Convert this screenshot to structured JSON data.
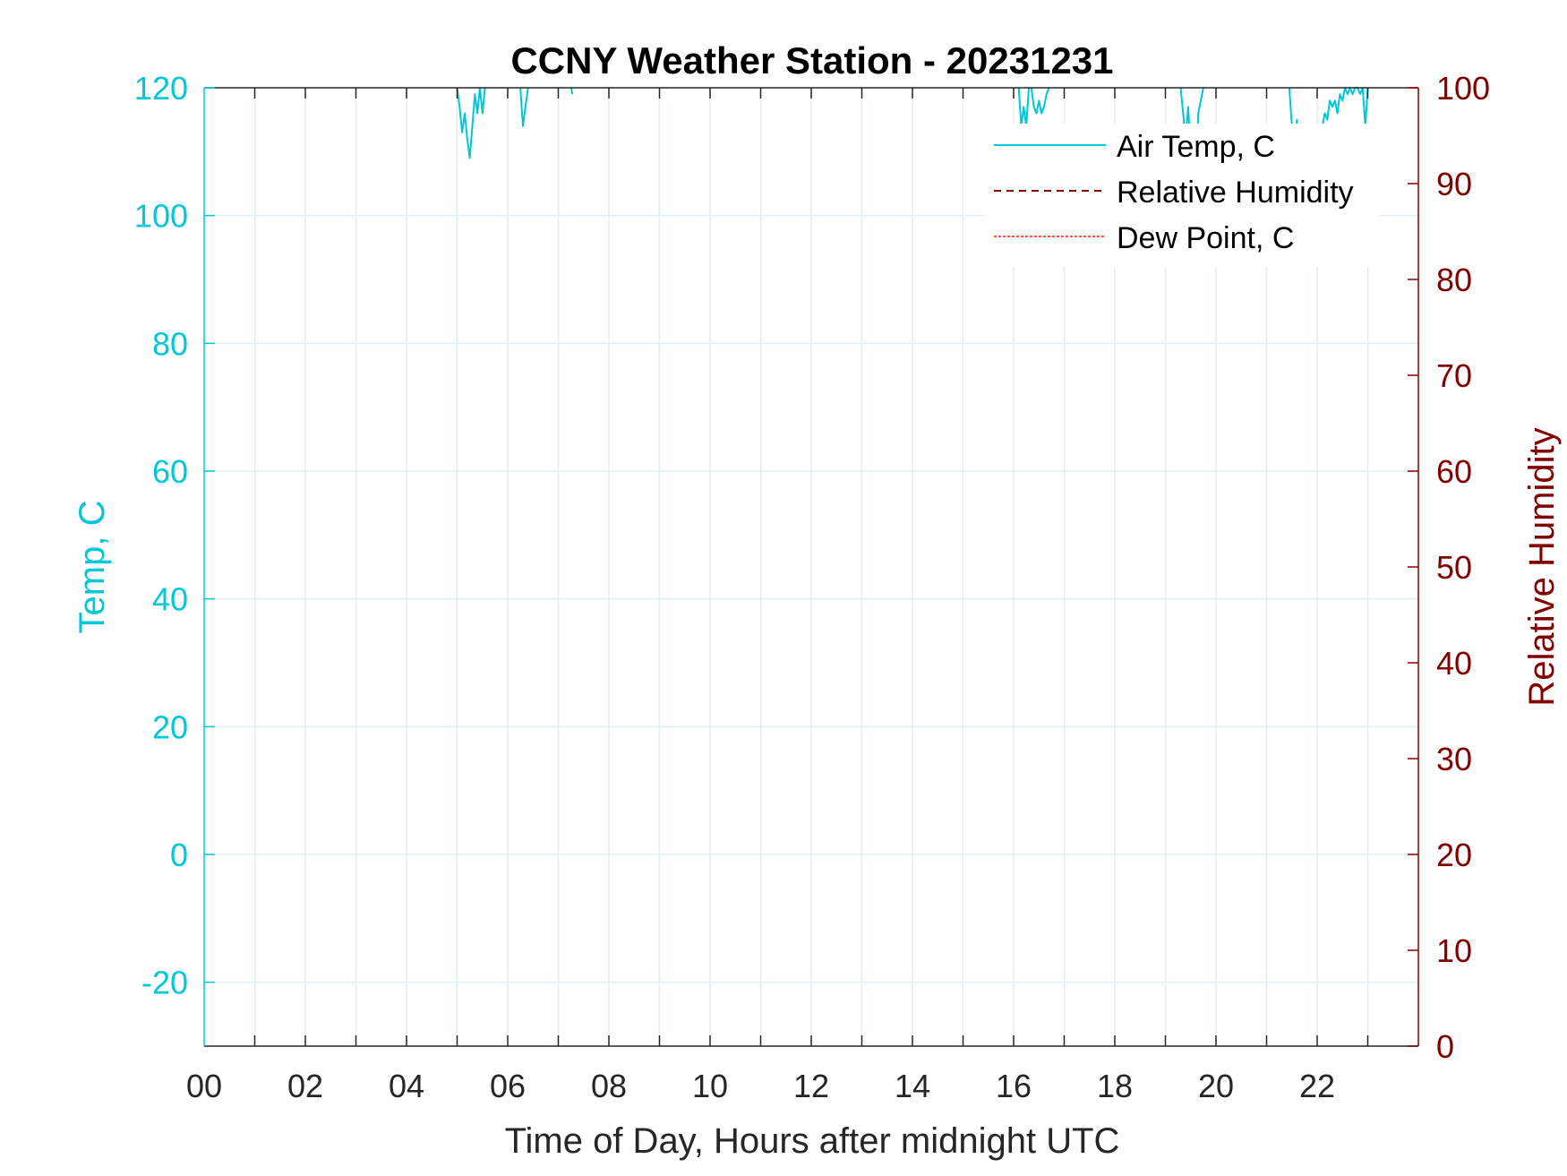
{
  "chart_data": {
    "type": "line",
    "title": "CCNY Weather Station - 20231231",
    "xlabel": "Time of Day, Hours after midnight UTC",
    "ylabel_left": "Temp, C",
    "ylabel_right": "Relative Humidity",
    "xlim": [
      0,
      24
    ],
    "ylim_left": [
      -30,
      120
    ],
    "ylim_right": [
      0,
      100
    ],
    "x_ticks": [
      "00",
      "02",
      "04",
      "06",
      "08",
      "10",
      "12",
      "14",
      "16",
      "18",
      "20",
      "22"
    ],
    "x_tick_values": [
      0,
      2,
      4,
      6,
      8,
      10,
      12,
      14,
      16,
      18,
      20,
      22
    ],
    "y_left_ticks": [
      "120",
      "100",
      "80",
      "60",
      "40",
      "20",
      "0",
      "-20"
    ],
    "y_left_tick_values": [
      120,
      100,
      80,
      60,
      40,
      20,
      0,
      -20
    ],
    "y_right_ticks": [
      "100",
      "90",
      "80",
      "70",
      "60",
      "50",
      "40",
      "30",
      "20",
      "10",
      "0"
    ],
    "y_right_tick_values": [
      100,
      90,
      80,
      70,
      60,
      50,
      40,
      30,
      20,
      10,
      0
    ],
    "grid": true,
    "legend_position": "top-right",
    "colors": {
      "air_temp": "#00c8d8",
      "rh": "#800000",
      "dew_point": "#ff5040",
      "axis": "#262626",
      "grid": "#e2eef2"
    },
    "series": [
      {
        "name": "Air Temp, C",
        "axis": "left",
        "style": "solid",
        "segments": [
          {
            "x": [
              5.0,
              5.05,
              5.1,
              5.15,
              5.2,
              5.25,
              5.3,
              5.35,
              5.4,
              5.45,
              5.5,
              5.55
            ],
            "y": [
              120,
              117,
              113,
              116,
              112,
              109,
              114,
              119,
              116,
              120,
              116,
              120
            ]
          },
          {
            "x": [
              6.25,
              6.3,
              6.35,
              6.4
            ],
            "y": [
              120,
              114,
              117,
              120
            ]
          },
          {
            "x": [
              7.25,
              7.28
            ],
            "y": [
              120,
              119
            ]
          },
          {
            "x": [
              16.1,
              16.15,
              16.2,
              16.25,
              16.3
            ],
            "y": [
              120,
              114,
              117,
              114,
              120
            ]
          },
          {
            "x": [
              16.35,
              16.4,
              16.45,
              16.5,
              16.55,
              16.6,
              16.65,
              16.7
            ],
            "y": [
              120,
              117,
              116,
              118,
              116,
              117,
              119,
              120
            ]
          },
          {
            "x": [
              19.3,
              19.35,
              19.4,
              19.45,
              19.5,
              19.55,
              19.6,
              19.65,
              19.7,
              19.75
            ],
            "y": [
              120,
              116,
              112,
              117,
              110,
              114,
              106,
              116,
              118,
              120
            ]
          },
          {
            "x": [
              21.45,
              21.5,
              21.55,
              21.6,
              21.65,
              21.7,
              21.75,
              21.8,
              21.85,
              21.9,
              21.95,
              22.0,
              22.05,
              22.1,
              22.15,
              22.2,
              22.25,
              22.3,
              22.35,
              22.4,
              22.45,
              22.5,
              22.55,
              22.6,
              22.65,
              22.7,
              22.75,
              22.8,
              22.85,
              22.9,
              22.95,
              23.0
            ],
            "y": [
              120,
              114,
              110,
              115,
              105,
              112,
              109,
              114,
              111,
              113,
              109,
              112,
              110,
              114,
              116,
              115,
              118,
              117,
              118,
              116,
              119,
              118,
              120,
              119,
              120,
              119,
              120,
              120,
              119,
              120,
              114,
              120
            ]
          }
        ]
      },
      {
        "name": "Relative Humidity",
        "axis": "right",
        "style": "dashed",
        "segments": []
      },
      {
        "name": "Dew Point, C",
        "axis": "left",
        "style": "dotted",
        "segments": []
      }
    ]
  }
}
